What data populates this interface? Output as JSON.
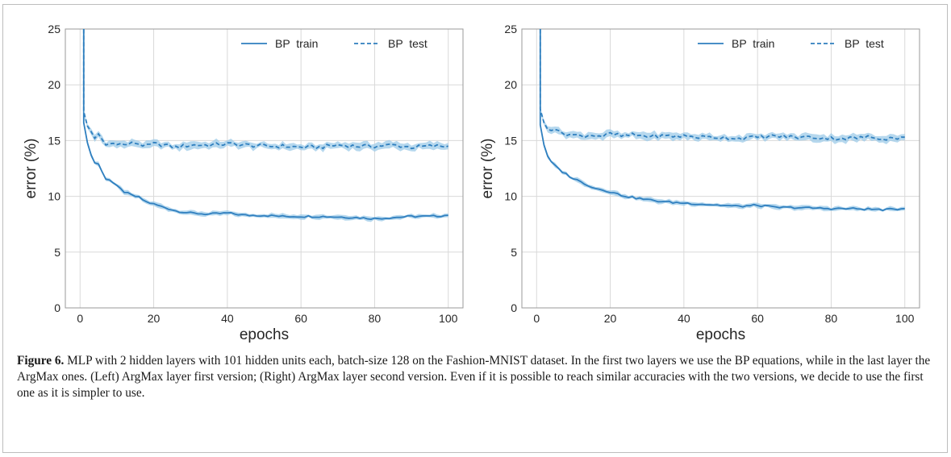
{
  "chart_data": [
    {
      "type": "line",
      "xlabel": "epochs",
      "ylabel": "error (%)",
      "xlim": [
        -4,
        104
      ],
      "ylim": [
        0,
        25
      ],
      "xticks": [
        "0",
        "20",
        "40",
        "60",
        "80",
        "100"
      ],
      "yticks": [
        "0",
        "5",
        "10",
        "15",
        "20",
        "25"
      ],
      "grid": true,
      "legend_position": "top-right",
      "series": [
        {
          "name": "BP  train",
          "style": "solid",
          "x": [
            1,
            2,
            3,
            4,
            5,
            6,
            7,
            8,
            10,
            12,
            14,
            16,
            18,
            20,
            23,
            26,
            30,
            35,
            40,
            45,
            50,
            55,
            60,
            65,
            70,
            75,
            80,
            85,
            90,
            95,
            100
          ],
          "values": [
            16.6,
            14.8,
            13.7,
            13.0,
            12.9,
            12.2,
            11.6,
            11.5,
            10.9,
            10.4,
            10.1,
            9.9,
            9.5,
            9.3,
            9.0,
            8.7,
            8.5,
            8.4,
            8.5,
            8.3,
            8.3,
            8.2,
            8.2,
            8.2,
            8.15,
            8.1,
            8.0,
            8.1,
            8.2,
            8.2,
            8.3
          ]
        },
        {
          "name": "BP  test",
          "style": "dashed",
          "x": [
            1,
            2,
            3,
            4,
            5,
            6,
            7,
            8,
            10,
            12,
            15,
            18,
            20,
            23,
            26,
            30,
            35,
            40,
            45,
            50,
            55,
            60,
            65,
            70,
            75,
            80,
            85,
            90,
            95,
            100
          ],
          "values": [
            17.6,
            16.3,
            15.8,
            15.2,
            15.6,
            15.1,
            14.6,
            14.7,
            14.8,
            14.6,
            14.8,
            14.5,
            14.7,
            14.6,
            14.4,
            14.6,
            14.6,
            14.7,
            14.6,
            14.5,
            14.5,
            14.4,
            14.4,
            14.6,
            14.5,
            14.5,
            14.6,
            14.4,
            14.5,
            14.5
          ]
        }
      ]
    },
    {
      "type": "line",
      "xlabel": "epochs",
      "ylabel": "error (%)",
      "xlim": [
        -4,
        104
      ],
      "ylim": [
        0,
        25
      ],
      "xticks": [
        "0",
        "20",
        "40",
        "60",
        "80",
        "100"
      ],
      "yticks": [
        "0",
        "5",
        "10",
        "15",
        "20",
        "25"
      ],
      "grid": true,
      "legend_position": "top-right",
      "series": [
        {
          "name": "BP  train",
          "style": "solid",
          "x": [
            1,
            2,
            3,
            4,
            5,
            6,
            7,
            8,
            10,
            12,
            14,
            16,
            18,
            20,
            23,
            26,
            30,
            35,
            40,
            45,
            50,
            55,
            60,
            65,
            70,
            75,
            80,
            85,
            90,
            95,
            100
          ],
          "values": [
            16.4,
            14.6,
            13.6,
            13.1,
            12.8,
            12.5,
            12.2,
            12.0,
            11.6,
            11.3,
            11.0,
            10.7,
            10.6,
            10.4,
            10.1,
            9.9,
            9.7,
            9.5,
            9.4,
            9.3,
            9.2,
            9.1,
            9.2,
            9.0,
            9.0,
            8.95,
            8.9,
            8.9,
            8.85,
            8.8,
            8.9
          ]
        },
        {
          "name": "BP  test",
          "style": "dashed",
          "x": [
            1,
            2,
            3,
            4,
            5,
            6,
            7,
            8,
            10,
            12,
            15,
            18,
            20,
            23,
            26,
            30,
            35,
            40,
            45,
            50,
            55,
            60,
            65,
            70,
            75,
            80,
            85,
            90,
            95,
            100
          ],
          "values": [
            17.8,
            16.6,
            16.0,
            15.9,
            16.0,
            15.9,
            15.7,
            15.6,
            15.5,
            15.4,
            15.5,
            15.4,
            15.6,
            15.4,
            15.5,
            15.4,
            15.4,
            15.4,
            15.3,
            15.3,
            15.2,
            15.3,
            15.4,
            15.3,
            15.3,
            15.2,
            15.2,
            15.3,
            15.2,
            15.3
          ]
        }
      ]
    }
  ],
  "caption": {
    "label": "Figure 6.",
    "text": " MLP with 2 hidden layers with 101 hidden units each, batch-size 128 on the Fashion-MNIST dataset. In the first two layers we use the BP equations, while in the last layer the ArgMax ones. (Left) ArgMax layer first version; (Right) ArgMax layer second version. Even if it is possible to reach similar accuracies with the two versions, we decide to use the first one as it is simpler to use."
  },
  "colors": {
    "series": "#2f7fbf",
    "band": "#9ecbe8",
    "grid": "#d9d9d9",
    "axis": "#9a9a9a"
  }
}
